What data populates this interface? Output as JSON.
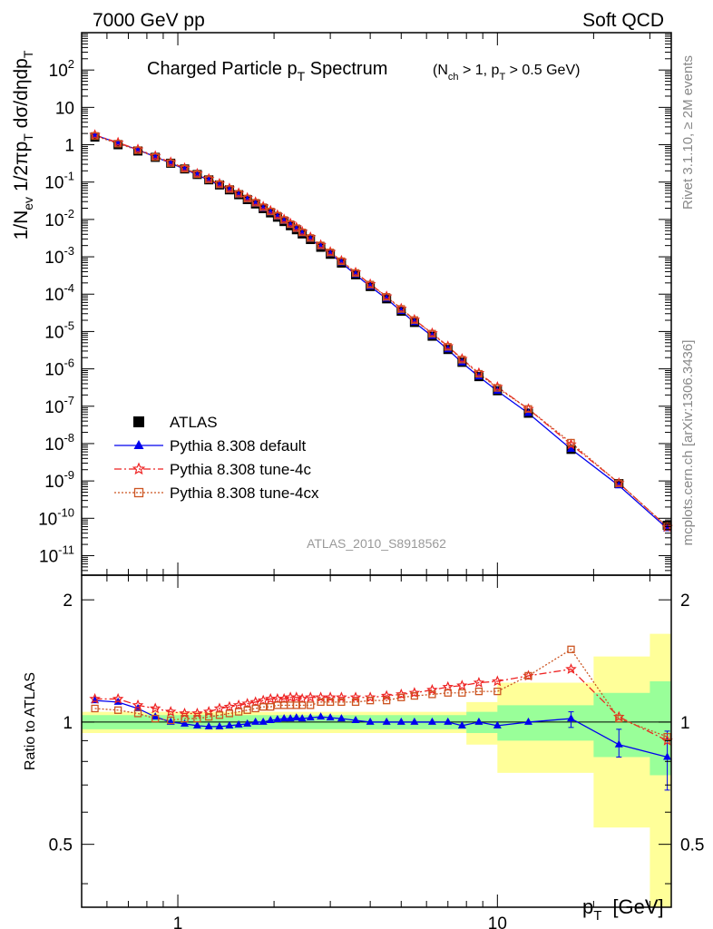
{
  "header": {
    "left": "7000 GeV pp",
    "right": "Soft QCD"
  },
  "title": {
    "main": "Charged Particle p",
    "main_sub": "T",
    "main_tail": " Spectrum",
    "cond_a": "(N",
    "cond_a_sub": "ch",
    "cond_b": " > 1, p",
    "cond_b_sub": "T",
    "cond_c": " > 0.5 GeV)"
  },
  "side_labels": {
    "rivet": "Rivet 3.1.10, ≥ 2M events",
    "mcplots": "mcplots.cern.ch [arXiv:1306.3436]"
  },
  "analysis_id": "ATLAS_2010_S8918562",
  "ylabel": {
    "a": "1/N",
    "a_sub": "ev",
    "b": " 1/2πp",
    "b_sub": "T",
    "c": " dσ/dηdp",
    "c_sub": "T"
  },
  "ratio_ylabel": "Ratio to ATLAS",
  "xlabel": {
    "p": "p",
    "sub": "T",
    "unit": "[GeV]"
  },
  "legend": [
    {
      "label": "ATLAS",
      "marker": "square-filled",
      "color": "#000000",
      "dash": ""
    },
    {
      "label": "Pythia 8.308 default",
      "marker": "triangle-filled",
      "color": "#0000ee",
      "dash": ""
    },
    {
      "label": "Pythia 8.308 tune-4c",
      "marker": "star-open",
      "color": "#ee2222",
      "dash": "8,3,2,3"
    },
    {
      "label": "Pythia 8.308 tune-4cx",
      "marker": "square-open",
      "color": "#cc5522",
      "dash": "2,2"
    }
  ],
  "colors": {
    "band_outer": "#ffff99",
    "band_inner": "#99ff99"
  },
  "chart_data": {
    "type": "line",
    "x_scale": "log",
    "y_scale": "log",
    "xlim": [
      0.5,
      35
    ],
    "main_ylim": [
      3e-12,
      1000
    ],
    "ratio_ylim": [
      0.35,
      2.3
    ],
    "x_ticks": [
      {
        "v": 1,
        "label": "1"
      },
      {
        "v": 10,
        "label": "10"
      }
    ],
    "main_y_ticks": [
      {
        "v": 100.0,
        "m": "10",
        "e": "2"
      },
      {
        "v": 10.0,
        "m": "10",
        "e": ""
      },
      {
        "v": 1,
        "m": "1",
        "e": ""
      },
      {
        "v": 0.1,
        "m": "10",
        "e": "-1"
      },
      {
        "v": 0.01,
        "m": "10",
        "e": "-2"
      },
      {
        "v": 0.001,
        "m": "10",
        "e": "-3"
      },
      {
        "v": 0.0001,
        "m": "10",
        "e": "-4"
      },
      {
        "v": 1e-05,
        "m": "10",
        "e": "-5"
      },
      {
        "v": 1e-06,
        "m": "10",
        "e": "-6"
      },
      {
        "v": 1e-07,
        "m": "10",
        "e": "-7"
      },
      {
        "v": 1e-08,
        "m": "10",
        "e": "-8"
      },
      {
        "v": 1e-09,
        "m": "10",
        "e": "-9"
      },
      {
        "v": 1e-10,
        "m": "10",
        "e": "-10"
      },
      {
        "v": 1e-11,
        "m": "10",
        "e": "-11"
      }
    ],
    "ratio_y_ticks": [
      {
        "v": 2,
        "label": "2"
      },
      {
        "v": 1,
        "label": "1"
      },
      {
        "v": 0.5,
        "label": "0.5"
      }
    ],
    "x": [
      0.55,
      0.65,
      0.75,
      0.85,
      0.95,
      1.05,
      1.15,
      1.25,
      1.35,
      1.45,
      1.55,
      1.65,
      1.75,
      1.85,
      1.95,
      2.05,
      2.15,
      2.25,
      2.35,
      2.45,
      2.6,
      2.8,
      3.0,
      3.25,
      3.6,
      4.0,
      4.5,
      5.0,
      5.5,
      6.25,
      7.0,
      7.75,
      8.75,
      10.0,
      12.5,
      17.0,
      24.0,
      34.0
    ],
    "series": [
      {
        "name": "ATLAS",
        "values": [
          1.6,
          1.0,
          0.68,
          0.46,
          0.32,
          0.225,
          0.16,
          0.115,
          0.084,
          0.062,
          0.046,
          0.034,
          0.026,
          0.0195,
          0.015,
          0.0115,
          0.0088,
          0.0068,
          0.0053,
          0.0041,
          0.0029,
          0.0018,
          0.00117,
          0.00068,
          0.00033,
          0.00016,
          7.5e-05,
          3.5e-05,
          1.75e-05,
          7.5e-06,
          3.3e-06,
          1.5e-06,
          6.2e-07,
          2.6e-07,
          6.5e-08,
          7e-09,
          8.5e-10,
          6.5e-11
        ]
      },
      {
        "name": "Pythia 8.308 default",
        "ratio": [
          1.13,
          1.12,
          1.08,
          1.03,
          1.0,
          0.99,
          0.98,
          0.975,
          0.975,
          0.98,
          0.985,
          0.99,
          1.0,
          1.0,
          1.01,
          1.015,
          1.02,
          1.02,
          1.025,
          1.02,
          1.025,
          1.03,
          1.025,
          1.02,
          1.01,
          1.0,
          1.0,
          1.0,
          1.0,
          1.0,
          1.0,
          0.98,
          1.0,
          0.98,
          1.0,
          1.02,
          0.88,
          0.82
        ]
      },
      {
        "name": "Pythia 8.308 tune-4c",
        "ratio": [
          1.14,
          1.14,
          1.1,
          1.08,
          1.06,
          1.05,
          1.05,
          1.06,
          1.08,
          1.09,
          1.1,
          1.11,
          1.12,
          1.13,
          1.14,
          1.14,
          1.14,
          1.15,
          1.15,
          1.14,
          1.15,
          1.15,
          1.15,
          1.15,
          1.15,
          1.15,
          1.16,
          1.17,
          1.18,
          1.2,
          1.22,
          1.23,
          1.25,
          1.26,
          1.3,
          1.35,
          1.03,
          0.9
        ]
      },
      {
        "name": "Pythia 8.308 tune-4cx",
        "ratio": [
          1.08,
          1.07,
          1.05,
          1.02,
          1.01,
          1.02,
          1.02,
          1.03,
          1.04,
          1.05,
          1.06,
          1.07,
          1.08,
          1.09,
          1.09,
          1.1,
          1.1,
          1.1,
          1.1,
          1.1,
          1.1,
          1.12,
          1.12,
          1.12,
          1.12,
          1.13,
          1.13,
          1.15,
          1.16,
          1.17,
          1.18,
          1.18,
          1.19,
          1.19,
          1.3,
          1.51,
          1.02,
          0.92
        ]
      }
    ],
    "ratio_errors": [
      {
        "x": 17.0,
        "lo": 0.97,
        "hi": 1.06
      },
      {
        "x": 24.0,
        "lo": 0.82,
        "hi": 0.96
      },
      {
        "x": 34.0,
        "lo": 0.68,
        "hi": 0.95
      }
    ],
    "band_inner": [
      [
        0.5,
        0.96,
        1.04
      ],
      [
        8.0,
        0.94,
        1.06
      ],
      [
        10.0,
        0.9,
        1.1
      ],
      [
        20.0,
        0.82,
        1.18
      ],
      [
        30.0,
        0.74,
        1.26
      ],
      [
        35.0,
        0.74,
        1.26
      ]
    ],
    "band_outer": [
      [
        0.5,
        0.94,
        1.06
      ],
      [
        8.0,
        0.88,
        1.12
      ],
      [
        10.0,
        0.75,
        1.25
      ],
      [
        20.0,
        0.55,
        1.45
      ],
      [
        30.0,
        0.35,
        1.65
      ],
      [
        35.0,
        0.35,
        1.65
      ]
    ]
  }
}
